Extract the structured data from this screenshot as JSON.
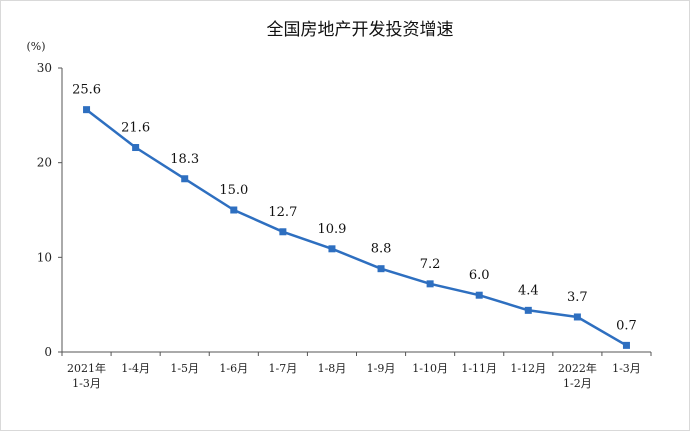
{
  "chart_data": {
    "type": "line",
    "title": "全国房地产开发投资增速",
    "ylabel": "(%)",
    "xlabel": "",
    "ylim": [
      0,
      30
    ],
    "yticks": [
      "0",
      "10",
      "20",
      "30"
    ],
    "grid": false,
    "legend": "none",
    "categories": [
      [
        "2021年",
        "1-3月"
      ],
      [
        "1-4月"
      ],
      [
        "1-5月"
      ],
      [
        "1-6月"
      ],
      [
        "1-7月"
      ],
      [
        "1-8月"
      ],
      [
        "1-9月"
      ],
      [
        "1-10月"
      ],
      [
        "1-11月"
      ],
      [
        "1-12月"
      ],
      [
        "2022年",
        "1-2月"
      ],
      [
        "1-3月"
      ]
    ],
    "series": [
      {
        "values": [
          25.6,
          21.6,
          18.3,
          15.0,
          12.7,
          10.9,
          8.8,
          7.2,
          6.0,
          4.4,
          3.7,
          0.7
        ],
        "labels": [
          "25.6",
          "21.6",
          "18.3",
          "15.0",
          "12.7",
          "10.9",
          "8.8",
          "7.2",
          "6.0",
          "4.4",
          "3.7",
          "0.7"
        ],
        "color": "#2e6fc0"
      }
    ]
  }
}
